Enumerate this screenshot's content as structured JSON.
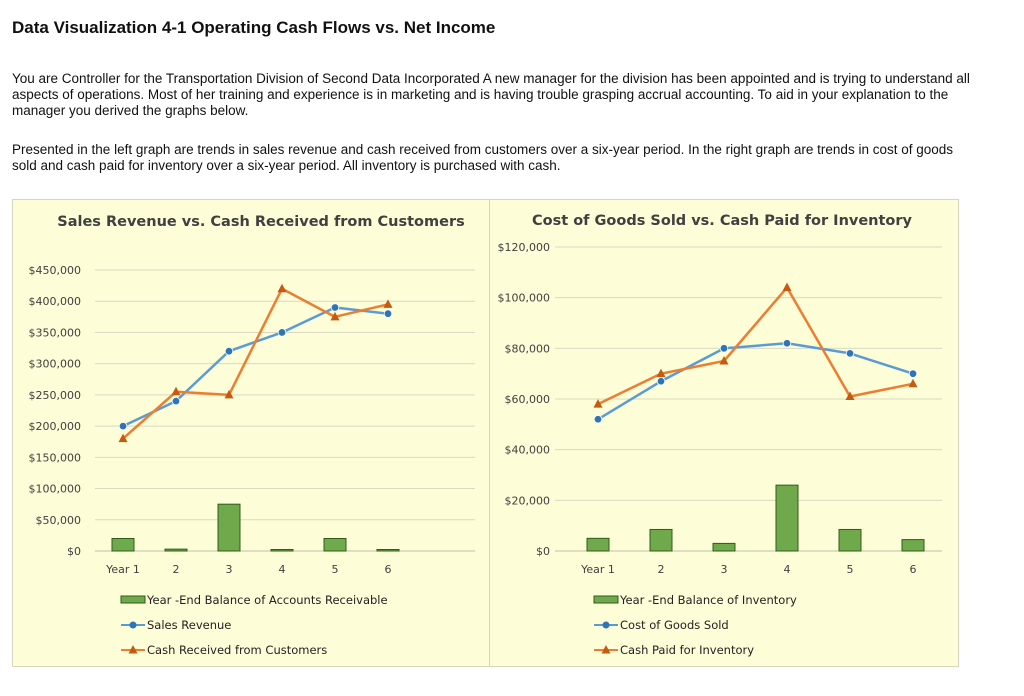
{
  "page": {
    "title": "Data Visualization 4-1 Operating Cash Flows vs. Net Income",
    "intro": "You are Controller for the Transportation Division of Second Data Incorporated A new manager for the division has been appointed and is trying to understand all aspects of operations. Most of her training and experience is in marketing and is having trouble grasping accrual accounting. To aid in your explanation to the manager you derived the graphs below.",
    "details": "Presented in the left graph are trends in sales revenue and cash received from customers over a six-year period. In the right graph are trends in cost of goods sold and cash paid for inventory over a six-year period. All inventory is purchased with cash."
  },
  "colors": {
    "panel_background": "#fdfdd8",
    "bar": "#6fa94c",
    "bar_edge": "#2f5d1a",
    "line_blue": "#5b9bd5",
    "line_orange": "#ed7d31",
    "marker_blue": "#2e75b6",
    "marker_orange": "#c55a11",
    "grid": "#d9d9c4"
  },
  "chart_data": [
    {
      "type": "bar+line",
      "title": "Sales Revenue vs. Cash Received from Customers",
      "categories": [
        "Year 1",
        "2",
        "3",
        "4",
        "5",
        "6"
      ],
      "ylim": [
        0,
        450000
      ],
      "yticks": [
        0,
        50000,
        100000,
        150000,
        200000,
        250000,
        300000,
        350000,
        400000,
        450000
      ],
      "ytick_labels": [
        "$0",
        "$50,000",
        "$100,000",
        "$150,000",
        "$200,000",
        "$250,000",
        "$300,000",
        "$350,000",
        "$400,000",
        "$450,000"
      ],
      "grid": true,
      "legend_position": "bottom",
      "bar_series": {
        "name": "Year -End Balance of Accounts Receivable",
        "values": [
          20000,
          3000,
          75000,
          2000,
          20000,
          2000
        ]
      },
      "line_series": [
        {
          "name": "Sales Revenue",
          "values": [
            200000,
            240000,
            320000,
            350000,
            390000,
            380000
          ],
          "color": "#5b9bd5",
          "marker": "circle"
        },
        {
          "name": "Cash Received from Customers",
          "values": [
            180000,
            255000,
            250000,
            420000,
            375000,
            395000
          ],
          "color": "#ed7d31",
          "marker": "triangle"
        }
      ]
    },
    {
      "type": "bar+line",
      "title": "Cost of Goods Sold vs. Cash Paid for Inventory",
      "categories": [
        "Year 1",
        "2",
        "3",
        "4",
        "5",
        "6"
      ],
      "ylim": [
        0,
        120000
      ],
      "yticks": [
        0,
        20000,
        40000,
        60000,
        80000,
        100000,
        120000
      ],
      "ytick_labels": [
        "$0",
        "$20,000",
        "$40,000",
        "$60,000",
        "$80,000",
        "$100,000",
        "$120,000"
      ],
      "grid": true,
      "legend_position": "bottom",
      "bar_series": {
        "name": "Year -End Balance of Inventory",
        "values": [
          5000,
          8500,
          3000,
          26000,
          8500,
          4500
        ]
      },
      "line_series": [
        {
          "name": "Cost of Goods Sold",
          "values": [
            52000,
            67000,
            80000,
            82000,
            78000,
            70000
          ],
          "color": "#5b9bd5",
          "marker": "circle"
        },
        {
          "name": "Cash Paid for Inventory",
          "values": [
            58000,
            70000,
            75000,
            104000,
            61000,
            66000
          ],
          "color": "#ed7d31",
          "marker": "triangle"
        }
      ]
    }
  ]
}
